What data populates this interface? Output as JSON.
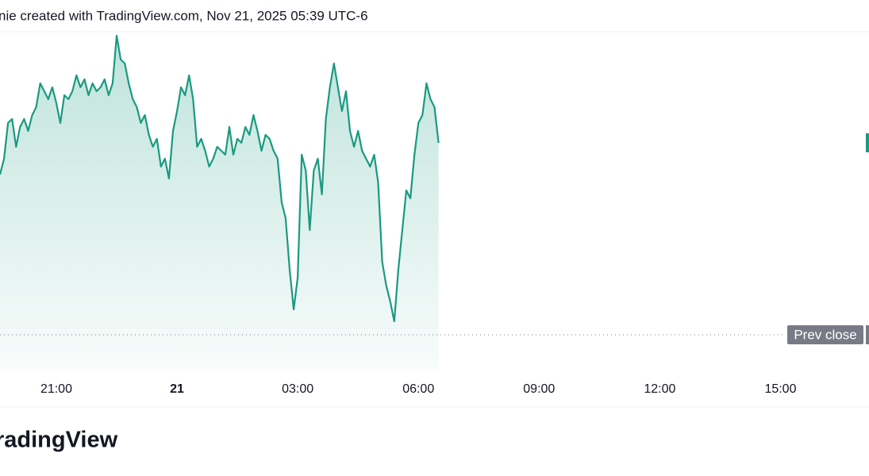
{
  "header": {
    "text": "nie created with TradingView.com, Nov 21, 2025 05:39 UTC-6"
  },
  "logo": {
    "text": "radingView"
  },
  "chart_data": {
    "type": "line",
    "x": [
      19.6,
      19.7,
      19.8,
      19.9,
      20.0,
      20.1,
      20.2,
      20.3,
      20.4,
      20.5,
      20.6,
      20.7,
      20.8,
      20.9,
      21.0,
      21.1,
      21.2,
      21.3,
      21.4,
      21.5,
      21.6,
      21.7,
      21.8,
      21.9,
      22.0,
      22.1,
      22.2,
      22.3,
      22.4,
      22.5,
      22.6,
      22.7,
      22.8,
      22.9,
      23.0,
      23.1,
      23.2,
      23.3,
      23.4,
      23.5,
      23.6,
      23.7,
      23.8,
      23.9,
      24.0,
      24.1,
      24.2,
      24.3,
      24.4,
      24.5,
      24.6,
      24.7,
      24.8,
      24.9,
      25.0,
      25.1,
      25.2,
      25.3,
      25.4,
      25.5,
      25.6,
      25.7,
      25.8,
      25.9,
      26.0,
      26.1,
      26.2,
      26.3,
      26.4,
      26.5,
      26.6,
      26.7,
      26.8,
      26.9,
      27.0,
      27.1,
      27.2,
      27.3,
      27.4,
      27.5,
      27.6,
      27.7,
      27.8,
      27.9,
      28.0,
      28.1,
      28.2,
      28.3,
      28.4,
      28.5,
      28.6,
      28.7,
      28.8,
      28.9,
      29.0,
      29.1,
      29.2,
      29.3,
      29.4,
      29.5,
      29.6,
      29.7,
      29.8,
      29.9,
      30.0,
      30.1,
      30.2,
      30.3,
      30.4,
      30.5
    ],
    "series": [
      {
        "color": "#1a9a80",
        "values": [
          202,
          222,
          267,
          272,
          237,
          262,
          272,
          257,
          277,
          287,
          317,
          307,
          297,
          312,
          292,
          267,
          302,
          297,
          307,
          327,
          312,
          322,
          302,
          317,
          307,
          312,
          322,
          302,
          317,
          377,
          347,
          342,
          317,
          297,
          287,
          267,
          277,
          252,
          237,
          247,
          212,
          222,
          197,
          257,
          282,
          312,
          302,
          327,
          297,
          237,
          247,
          232,
          212,
          222,
          237,
          232,
          227,
          262,
          227,
          247,
          242,
          262,
          252,
          277,
          257,
          232,
          252,
          247,
          232,
          222,
          167,
          147,
          82,
          32,
          72,
          227,
          207,
          132,
          207,
          222,
          177,
          272,
          312,
          342,
          312,
          282,
          307,
          257,
          237,
          257,
          232,
          222,
          212,
          227,
          192,
          92,
          62,
          42,
          17,
          82,
          132,
          182,
          172,
          227,
          267,
          277,
          317,
          297,
          287,
          242
        ]
      }
    ],
    "xlim": [
      19.6,
      41.2
    ],
    "xticks": [
      {
        "value": 21,
        "label": "21:00"
      },
      {
        "value": 24,
        "label": "21"
      },
      {
        "value": 27,
        "label": "03:00"
      },
      {
        "value": 30,
        "label": "06:00"
      },
      {
        "value": 33,
        "label": "09:00"
      },
      {
        "value": 36,
        "label": "12:00"
      },
      {
        "value": 39,
        "label": "15:00"
      }
    ],
    "ylim": [
      -43,
      382
    ],
    "reference_line": {
      "label": "Prev close",
      "value": 0
    }
  }
}
